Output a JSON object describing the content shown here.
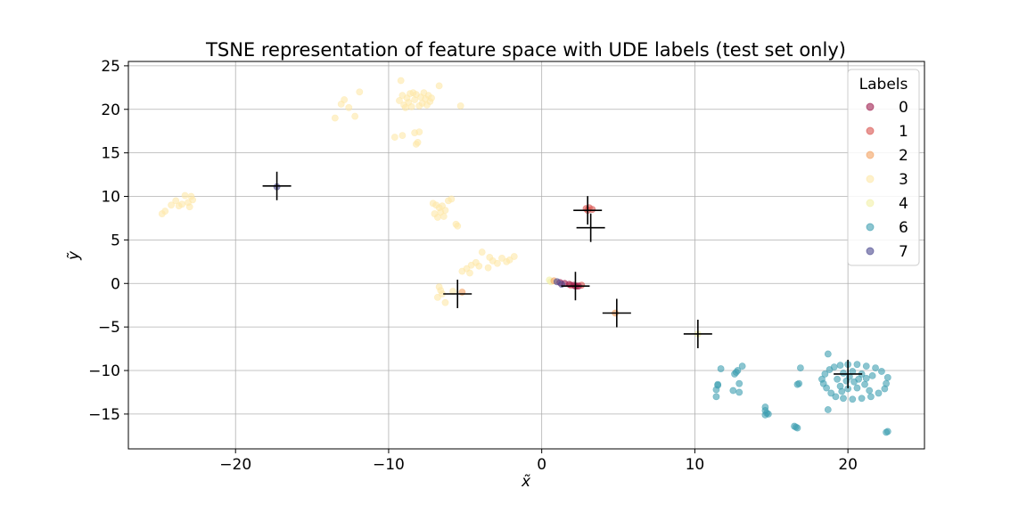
{
  "chart_data": {
    "type": "scatter",
    "title": "TSNE representation of feature space with UDE labels (test set only)",
    "xlabel": "x̃",
    "ylabel": "ỹ",
    "xlim": [
      -27,
      25
    ],
    "ylim": [
      -19,
      25.5
    ],
    "xticks": [
      -20,
      -10,
      0,
      10,
      20
    ],
    "xtick_labels": [
      "−20",
      "−10",
      "0",
      "10",
      "20"
    ],
    "yticks": [
      -15,
      -10,
      -5,
      0,
      5,
      10,
      15,
      20,
      25
    ],
    "ytick_labels": [
      "−15",
      "−10",
      "−5",
      "0",
      "5",
      "10",
      "15",
      "20",
      "25"
    ],
    "grid": true,
    "legend": {
      "title": "Labels",
      "placement": "top-right"
    },
    "series": [
      {
        "name": "0",
        "color": "#9e1e4e",
        "points": [
          [
            1.2,
            0.1
          ],
          [
            1.5,
            0.0
          ],
          [
            1.8,
            -0.1
          ],
          [
            2.1,
            -0.2
          ],
          [
            2.4,
            -0.3
          ],
          [
            2.2,
            -0.3
          ]
        ]
      },
      {
        "name": "1",
        "color": "#d9534f",
        "points": [
          [
            2.9,
            8.6
          ],
          [
            3.1,
            8.7
          ],
          [
            3.3,
            8.5
          ],
          [
            3.0,
            8.4
          ],
          [
            1.9,
            -0.2
          ],
          [
            2.3,
            -0.3
          ],
          [
            2.6,
            -0.2
          ]
        ]
      },
      {
        "name": "2",
        "color": "#f4a261",
        "points": [
          [
            4.8,
            -3.4
          ],
          [
            0.8,
            0.3
          ],
          [
            -5.2,
            -1.0
          ]
        ]
      },
      {
        "name": "3",
        "color": "#fde8a8",
        "points": [
          [
            -9.3,
            21.0
          ],
          [
            -9.1,
            21.6
          ],
          [
            -9.0,
            20.5
          ],
          [
            -8.8,
            21.3
          ],
          [
            -8.7,
            20.8
          ],
          [
            -8.6,
            21.8
          ],
          [
            -8.5,
            20.3
          ],
          [
            -8.3,
            21.1
          ],
          [
            -8.2,
            21.7
          ],
          [
            -8.0,
            20.4
          ],
          [
            -7.9,
            21.4
          ],
          [
            -7.8,
            20.7
          ],
          [
            -7.6,
            21.2
          ],
          [
            -7.5,
            20.5
          ],
          [
            -7.4,
            21.6
          ],
          [
            -7.3,
            20.9
          ],
          [
            -7.2,
            21.3
          ],
          [
            -8.9,
            20.2
          ],
          [
            -8.4,
            21.9
          ],
          [
            -7.7,
            21.9
          ],
          [
            -9.2,
            23.3
          ],
          [
            -6.7,
            22.7
          ],
          [
            -5.3,
            20.4
          ],
          [
            -11.9,
            22.0
          ],
          [
            -12.6,
            20.2
          ],
          [
            -12.2,
            19.2
          ],
          [
            -12.9,
            21.1
          ],
          [
            -13.1,
            20.6
          ],
          [
            -13.5,
            19.0
          ],
          [
            -9.6,
            16.8
          ],
          [
            -9.1,
            17.0
          ],
          [
            -8.3,
            17.3
          ],
          [
            -8.0,
            17.4
          ],
          [
            -8.2,
            16.0
          ],
          [
            -8.1,
            16.2
          ],
          [
            -24.8,
            8.0
          ],
          [
            -24.6,
            8.3
          ],
          [
            -24.2,
            9.0
          ],
          [
            -23.9,
            9.5
          ],
          [
            -23.7,
            8.9
          ],
          [
            -23.5,
            9.1
          ],
          [
            -23.3,
            10.1
          ],
          [
            -23.1,
            9.3
          ],
          [
            -23.0,
            8.8
          ],
          [
            -22.8,
            9.6
          ],
          [
            -22.9,
            10.0
          ],
          [
            -7.1,
            9.2
          ],
          [
            -6.9,
            9.0
          ],
          [
            -6.7,
            8.7
          ],
          [
            -6.5,
            8.9
          ],
          [
            -6.3,
            8.4
          ],
          [
            -6.1,
            9.5
          ],
          [
            -5.9,
            9.7
          ],
          [
            -6.8,
            7.6
          ],
          [
            -6.4,
            7.7
          ],
          [
            -5.6,
            6.8
          ],
          [
            -5.5,
            6.6
          ],
          [
            -6.6,
            8.2
          ],
          [
            -7.0,
            8.0
          ],
          [
            -5.2,
            1.4
          ],
          [
            -4.9,
            1.7
          ],
          [
            -4.6,
            2.1
          ],
          [
            -4.3,
            2.4
          ],
          [
            -4.1,
            2.0
          ],
          [
            -3.9,
            3.6
          ],
          [
            -3.4,
            3.0
          ],
          [
            -3.2,
            2.6
          ],
          [
            -2.9,
            2.3
          ],
          [
            -2.6,
            2.9
          ],
          [
            -2.3,
            2.5
          ],
          [
            -2.1,
            2.7
          ],
          [
            -1.8,
            3.1
          ],
          [
            -3.5,
            1.8
          ],
          [
            -4.7,
            1.2
          ],
          [
            -6.7,
            -0.4
          ],
          [
            -6.6,
            -0.8
          ],
          [
            -6.5,
            -1.2
          ],
          [
            -6.3,
            -2.2
          ],
          [
            -6.8,
            -1.6
          ],
          [
            -5.8,
            -0.9
          ]
        ]
      },
      {
        "name": "4",
        "color": "#f2f0a6",
        "points": [
          [
            0.5,
            0.4
          ],
          [
            10.2,
            -5.8
          ],
          [
            0.6,
            0.2
          ]
        ]
      },
      {
        "name": "6",
        "color": "#3e9fb0",
        "points": [
          [
            18.3,
            -11.0
          ],
          [
            18.4,
            -11.5
          ],
          [
            18.5,
            -10.4
          ],
          [
            18.6,
            -12.0
          ],
          [
            18.8,
            -9.9
          ],
          [
            18.9,
            -12.6
          ],
          [
            19.1,
            -9.6
          ],
          [
            19.2,
            -13.0
          ],
          [
            19.5,
            -9.4
          ],
          [
            19.7,
            -13.2
          ],
          [
            20.0,
            -9.3
          ],
          [
            20.3,
            -13.3
          ],
          [
            20.6,
            -9.3
          ],
          [
            20.9,
            -13.2
          ],
          [
            21.2,
            -9.5
          ],
          [
            21.5,
            -13.0
          ],
          [
            21.8,
            -9.7
          ],
          [
            22.0,
            -12.6
          ],
          [
            22.2,
            -10.1
          ],
          [
            22.4,
            -12.1
          ],
          [
            22.5,
            -11.5
          ],
          [
            22.6,
            -10.8
          ],
          [
            19.3,
            -11.0
          ],
          [
            19.5,
            -11.8
          ],
          [
            19.7,
            -10.3
          ],
          [
            20.0,
            -12.1
          ],
          [
            20.3,
            -10.1
          ],
          [
            20.6,
            -12.0
          ],
          [
            20.9,
            -10.4
          ],
          [
            21.1,
            -11.6
          ],
          [
            21.2,
            -10.9
          ],
          [
            19.9,
            -11.2
          ],
          [
            20.4,
            -11.3
          ],
          [
            20.1,
            -10.7
          ],
          [
            20.7,
            -11.0
          ],
          [
            19.6,
            -12.4
          ],
          [
            21.4,
            -12.3
          ],
          [
            21.6,
            -10.6
          ],
          [
            18.7,
            -8.1
          ],
          [
            18.7,
            -14.5
          ],
          [
            22.6,
            -17.0
          ],
          [
            22.5,
            -17.1
          ],
          [
            16.9,
            -9.7
          ],
          [
            16.8,
            -11.5
          ],
          [
            16.7,
            -11.6
          ],
          [
            16.5,
            -16.4
          ],
          [
            16.6,
            -16.5
          ],
          [
            16.7,
            -16.6
          ],
          [
            14.6,
            -14.2
          ],
          [
            14.6,
            -14.6
          ],
          [
            14.7,
            -14.9
          ],
          [
            14.8,
            -15.0
          ],
          [
            14.6,
            -15.1
          ],
          [
            12.6,
            -10.4
          ],
          [
            12.8,
            -10.0
          ],
          [
            13.1,
            -9.5
          ],
          [
            12.7,
            -10.2
          ],
          [
            12.9,
            -11.5
          ],
          [
            12.5,
            -12.3
          ],
          [
            12.9,
            -12.5
          ],
          [
            11.7,
            -9.8
          ],
          [
            11.5,
            -11.7
          ],
          [
            11.4,
            -12.2
          ],
          [
            11.4,
            -13.0
          ],
          [
            11.5,
            -11.6
          ]
        ]
      },
      {
        "name": "7",
        "color": "#4b4a8f",
        "points": [
          [
            -17.3,
            11.1
          ],
          [
            1.0,
            0.2
          ],
          [
            1.3,
            -0.1
          ]
        ]
      }
    ],
    "centroids": [
      [
        -17.3,
        11.2
      ],
      [
        3.0,
        8.4
      ],
      [
        3.2,
        6.4
      ],
      [
        2.2,
        -0.3
      ],
      [
        -5.5,
        -1.2
      ],
      [
        4.9,
        -3.4
      ],
      [
        10.2,
        -5.8
      ],
      [
        20.0,
        -10.4
      ]
    ]
  }
}
